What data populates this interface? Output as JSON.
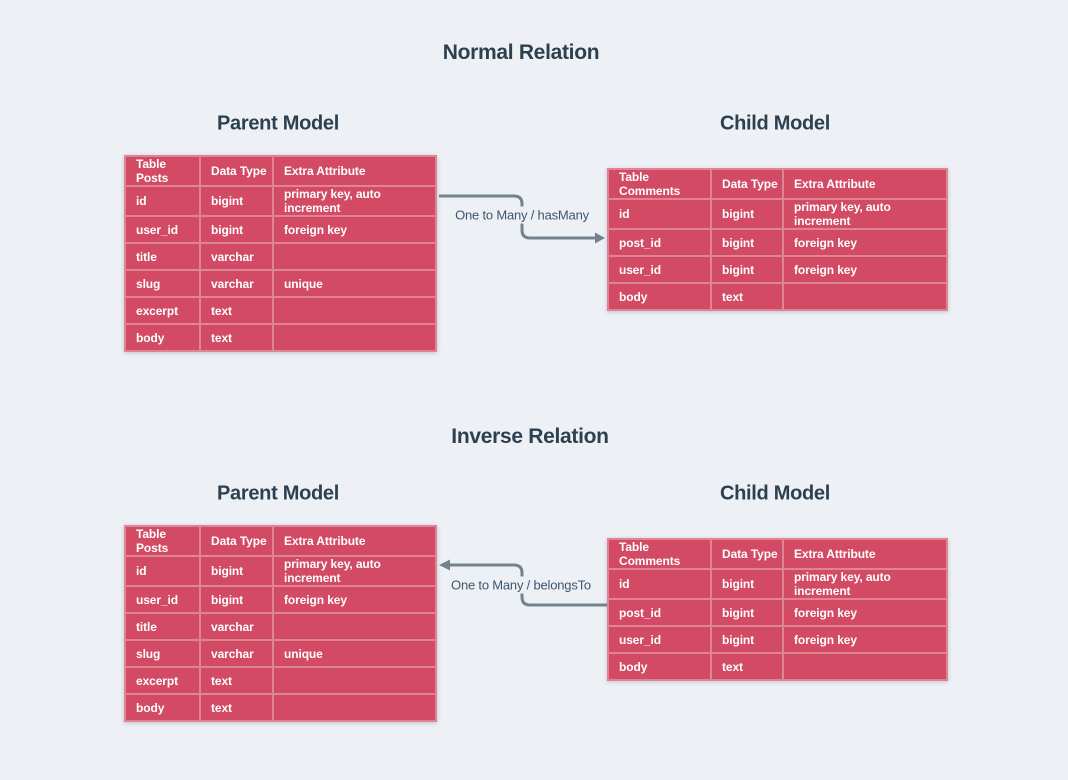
{
  "colors": {
    "background": "#edf1f6",
    "table_cell": "#d24a63",
    "table_border": "#de8495",
    "heading_text": "#2d4050",
    "connector_line": "#74828e",
    "label_text": "#3f566b",
    "cell_text": "#ffffff"
  },
  "sections": [
    {
      "title": "Normal Relation",
      "parent_heading": "Parent Model",
      "child_heading": "Child Model",
      "relation_label": "One to Many / hasMany",
      "arrow_direction": "right",
      "parent_table": {
        "headers": [
          "Table Posts",
          "Data Type",
          "Extra Attribute"
        ],
        "rows": [
          [
            "id",
            "bigint",
            "primary key, auto increment"
          ],
          [
            "user_id",
            "bigint",
            "foreign key"
          ],
          [
            "title",
            "varchar",
            ""
          ],
          [
            "slug",
            "varchar",
            "unique"
          ],
          [
            "excerpt",
            "text",
            ""
          ],
          [
            "body",
            "text",
            ""
          ]
        ]
      },
      "child_table": {
        "headers": [
          "Table Comments",
          "Data Type",
          "Extra Attribute"
        ],
        "rows": [
          [
            "id",
            "bigint",
            "primary key, auto increment"
          ],
          [
            "post_id",
            "bigint",
            "foreign key"
          ],
          [
            "user_id",
            "bigint",
            "foreign key"
          ],
          [
            "body",
            "text",
            ""
          ]
        ]
      }
    },
    {
      "title": "Inverse Relation",
      "parent_heading": "Parent Model",
      "child_heading": "Child Model",
      "relation_label": "One to Many / belongsTo",
      "arrow_direction": "left",
      "parent_table": {
        "headers": [
          "Table Posts",
          "Data Type",
          "Extra Attribute"
        ],
        "rows": [
          [
            "id",
            "bigint",
            "primary key, auto increment"
          ],
          [
            "user_id",
            "bigint",
            "foreign key"
          ],
          [
            "title",
            "varchar",
            ""
          ],
          [
            "slug",
            "varchar",
            "unique"
          ],
          [
            "excerpt",
            "text",
            ""
          ],
          [
            "body",
            "text",
            ""
          ]
        ]
      },
      "child_table": {
        "headers": [
          "Table Comments",
          "Data Type",
          "Extra Attribute"
        ],
        "rows": [
          [
            "id",
            "bigint",
            "primary key, auto increment"
          ],
          [
            "post_id",
            "bigint",
            "foreign key"
          ],
          [
            "user_id",
            "bigint",
            "foreign key"
          ],
          [
            "body",
            "text",
            ""
          ]
        ]
      }
    }
  ]
}
